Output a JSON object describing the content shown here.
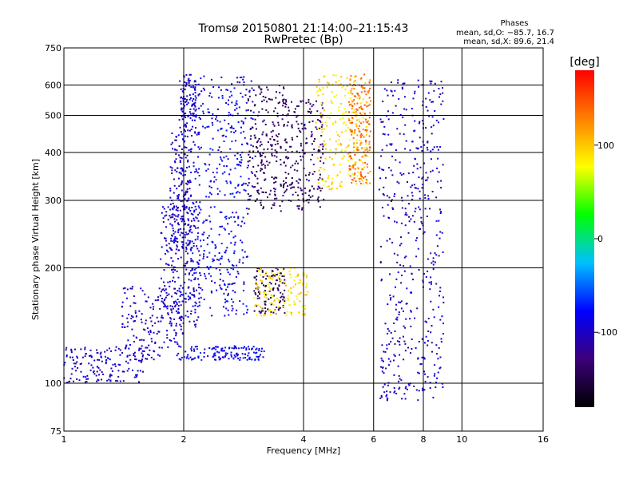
{
  "chart_data": {
    "type": "scatter",
    "title": "Tromsø 20150801 21:14:00–21:15:43",
    "subtitle": "RwPretec (Bp)",
    "xlabel": "Frequency [MHz]",
    "ylabel": "Stationary phase Virtual Height [km]",
    "x_scale": "log",
    "y_scale": "log",
    "xlim": [
      1,
      16
    ],
    "ylim": [
      75,
      750
    ],
    "x_ticks": [
      1,
      2,
      4,
      6,
      8,
      10,
      16
    ],
    "y_ticks": [
      75,
      100,
      200,
      300,
      400,
      500,
      600,
      750
    ],
    "grid": true,
    "stats": {
      "title": "Phases",
      "line_o": "mean, sd,O: −85.7, 16.7",
      "line_x": "mean, sd,X: 89.6, 21.4"
    },
    "colorbar": {
      "label": "[deg]",
      "range": [
        -180,
        180
      ],
      "ticks": [
        100,
        0,
        -100
      ],
      "colors": [
        "#000000",
        "#3c007a",
        "#0000ff",
        "#00c0ff",
        "#00ff00",
        "#ffff00",
        "#ff8000",
        "#ff0000"
      ]
    },
    "series": [
      {
        "name": "",
        "clusters": [
          {
            "x": [
              1.0,
              1.6
            ],
            "y": [
              100,
              125
            ],
            "phase": -100
          },
          {
            "x": [
              1.4,
              2.0
            ],
            "y": [
              115,
              180
            ],
            "phase": -100
          },
          {
            "x": [
              1.75,
              2.2
            ],
            "y": [
              140,
              300
            ],
            "phase": -100
          },
          {
            "x": [
              1.85,
              2.1
            ],
            "y": [
              220,
              450
            ],
            "phase": -100
          },
          {
            "x": [
              1.95,
              2.15
            ],
            "y": [
              450,
              640
            ],
            "phase": -95
          },
          {
            "x": [
              2.1,
              3.0
            ],
            "y": [
              300,
              640
            ],
            "phase": -85
          },
          {
            "x": [
              2.0,
              2.9
            ],
            "y": [
              150,
              290
            ],
            "phase": -85
          },
          {
            "x": [
              2.0,
              3.2
            ],
            "y": [
              115,
              125
            ],
            "phase": -85
          },
          {
            "x": [
              3.0,
              3.6
            ],
            "y": [
              150,
              200
            ],
            "phase": -140
          },
          {
            "x": [
              2.9,
              3.6
            ],
            "y": [
              280,
              600
            ],
            "phase": -140
          },
          {
            "x": [
              3.6,
              4.5
            ],
            "y": [
              280,
              550
            ],
            "phase": -135
          },
          {
            "x": [
              4.3,
              5.8
            ],
            "y": [
              320,
              640
            ],
            "phase": 90
          },
          {
            "x": [
              3.0,
              4.1
            ],
            "y": [
              150,
              200
            ],
            "phase": 90
          }
        ]
      },
      {
        "name": "",
        "clusters": [
          {
            "x": [
              5.2,
              5.9
            ],
            "y": [
              330,
              640
            ],
            "phase": 135
          },
          {
            "x": [
              6.2,
              9.0
            ],
            "y": [
              90,
              620
            ],
            "phase": -100
          }
        ]
      }
    ]
  }
}
